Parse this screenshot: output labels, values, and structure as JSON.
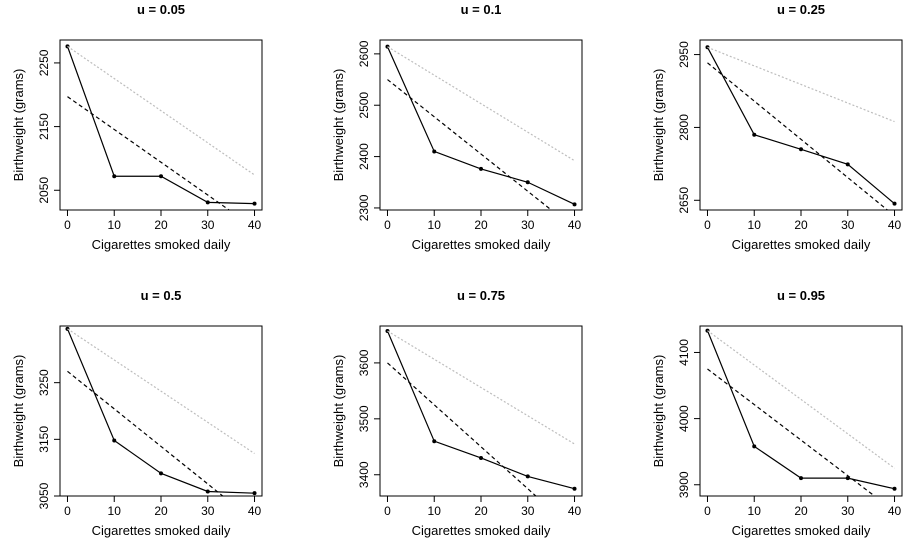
{
  "chart_data": [
    {
      "type": "line",
      "title": "u = 0.05",
      "xlabel": "Cigarettes smoked daily",
      "ylabel": "Birthweight (grams)",
      "xlim": [
        -1.6,
        41.6
      ],
      "ylim": [
        2019,
        2286
      ],
      "xticks": [
        0,
        10,
        20,
        30,
        40
      ],
      "yticks": [
        2050,
        2150,
        2250
      ],
      "x": [
        0,
        10,
        20,
        30,
        40
      ],
      "series": [
        {
          "style": "solid-points",
          "color": "#000000",
          "values": [
            2276,
            2072,
            2072,
            2031,
            2029
          ]
        },
        {
          "style": "dashed",
          "color": "#000000",
          "line": [
            [
              0,
              2197
            ],
            [
              40,
              1991
            ]
          ]
        },
        {
          "style": "dotted",
          "color": "#bdbdbd",
          "line": [
            [
              0,
              2276
            ],
            [
              40,
              2074
            ]
          ]
        }
      ]
    },
    {
      "type": "line",
      "title": "u = 0.1",
      "xlabel": "Cigarettes smoked daily",
      "ylabel": "Birthweight (grams)",
      "xlim": [
        -1.6,
        41.6
      ],
      "ylim": [
        2296,
        2627
      ],
      "xticks": [
        0,
        10,
        20,
        30,
        40
      ],
      "yticks": [
        2300,
        2400,
        2500,
        2600
      ],
      "x": [
        0,
        10,
        20,
        30,
        40
      ],
      "series": [
        {
          "style": "solid-points",
          "color": "#000000",
          "values": [
            2614,
            2410,
            2376,
            2350,
            2307
          ]
        },
        {
          "style": "dashed",
          "color": "#000000",
          "line": [
            [
              0,
              2550
            ],
            [
              40,
              2260
            ]
          ]
        },
        {
          "style": "dotted",
          "color": "#bdbdbd",
          "line": [
            [
              0,
              2614
            ],
            [
              40,
              2392
            ]
          ]
        }
      ]
    },
    {
      "type": "line",
      "title": "u = 0.25",
      "xlabel": "Cigarettes smoked daily",
      "ylabel": "Birthweight (grams)",
      "xlim": [
        -1.6,
        41.6
      ],
      "ylim": [
        2630,
        2980
      ],
      "xticks": [
        0,
        10,
        20,
        30,
        40
      ],
      "yticks": [
        2650,
        2800,
        2950
      ],
      "x": [
        0,
        10,
        20,
        30,
        40
      ],
      "series": [
        {
          "style": "solid-points",
          "color": "#000000",
          "values": [
            2965,
            2785,
            2755,
            2724,
            2643
          ]
        },
        {
          "style": "dashed",
          "color": "#000000",
          "line": [
            [
              0,
              2933
            ],
            [
              40,
              2618
            ]
          ]
        },
        {
          "style": "dotted",
          "color": "#bdbdbd",
          "line": [
            [
              0,
              2965
            ],
            [
              40,
              2812
            ]
          ]
        }
      ]
    },
    {
      "type": "line",
      "title": "u = 0.5",
      "xlabel": "Cigarettes smoked daily",
      "ylabel": "Birthweight (grams)",
      "xlim": [
        -1.6,
        41.6
      ],
      "ylim": [
        3050,
        3350
      ],
      "xticks": [
        0,
        10,
        20,
        30,
        40
      ],
      "yticks": [
        3050,
        3150,
        3250
      ],
      "x": [
        0,
        10,
        20,
        30,
        40
      ],
      "series": [
        {
          "style": "solid-points",
          "color": "#000000",
          "values": [
            3345,
            3148,
            3090,
            3058,
            3055
          ]
        },
        {
          "style": "dashed",
          "color": "#000000",
          "line": [
            [
              0,
              3270
            ],
            [
              40,
              3005
            ]
          ]
        },
        {
          "style": "dotted",
          "color": "#bdbdbd",
          "line": [
            [
              0,
              3345
            ],
            [
              40,
              3125
            ]
          ]
        }
      ]
    },
    {
      "type": "line",
      "title": "u = 0.75",
      "xlabel": "Cigarettes smoked daily",
      "ylabel": "Birthweight (grams)",
      "xlim": [
        -1.6,
        41.6
      ],
      "ylim": [
        3362,
        3666
      ],
      "xticks": [
        0,
        10,
        20,
        30,
        40
      ],
      "yticks": [
        3400,
        3500,
        3600
      ],
      "x": [
        0,
        10,
        20,
        30,
        40
      ],
      "series": [
        {
          "style": "solid-points",
          "color": "#000000",
          "values": [
            3657,
            3460,
            3430,
            3397,
            3375
          ]
        },
        {
          "style": "dashed",
          "color": "#000000",
          "line": [
            [
              0,
              3600
            ],
            [
              40,
              3300
            ]
          ]
        },
        {
          "style": "dotted",
          "color": "#bdbdbd",
          "line": [
            [
              0,
              3657
            ],
            [
              40,
              3455
            ]
          ]
        }
      ]
    },
    {
      "type": "line",
      "title": "u = 0.95",
      "xlabel": "Cigarettes smoked daily",
      "ylabel": "Birthweight (grams)",
      "xlim": [
        -1.6,
        41.6
      ],
      "ylim": [
        3883,
        4140
      ],
      "xticks": [
        0,
        10,
        20,
        30,
        40
      ],
      "yticks": [
        3900,
        4000,
        4100
      ],
      "x": [
        0,
        10,
        20,
        30,
        40
      ],
      "series": [
        {
          "style": "solid-points",
          "color": "#000000",
          "values": [
            4133,
            3958,
            3910,
            3910,
            3894
          ]
        },
        {
          "style": "dashed",
          "color": "#000000",
          "line": [
            [
              0,
              4075
            ],
            [
              40,
              3860
            ]
          ]
        },
        {
          "style": "dotted",
          "color": "#bdbdbd",
          "line": [
            [
              0,
              4133
            ],
            [
              40,
              3925
            ]
          ]
        }
      ]
    }
  ]
}
